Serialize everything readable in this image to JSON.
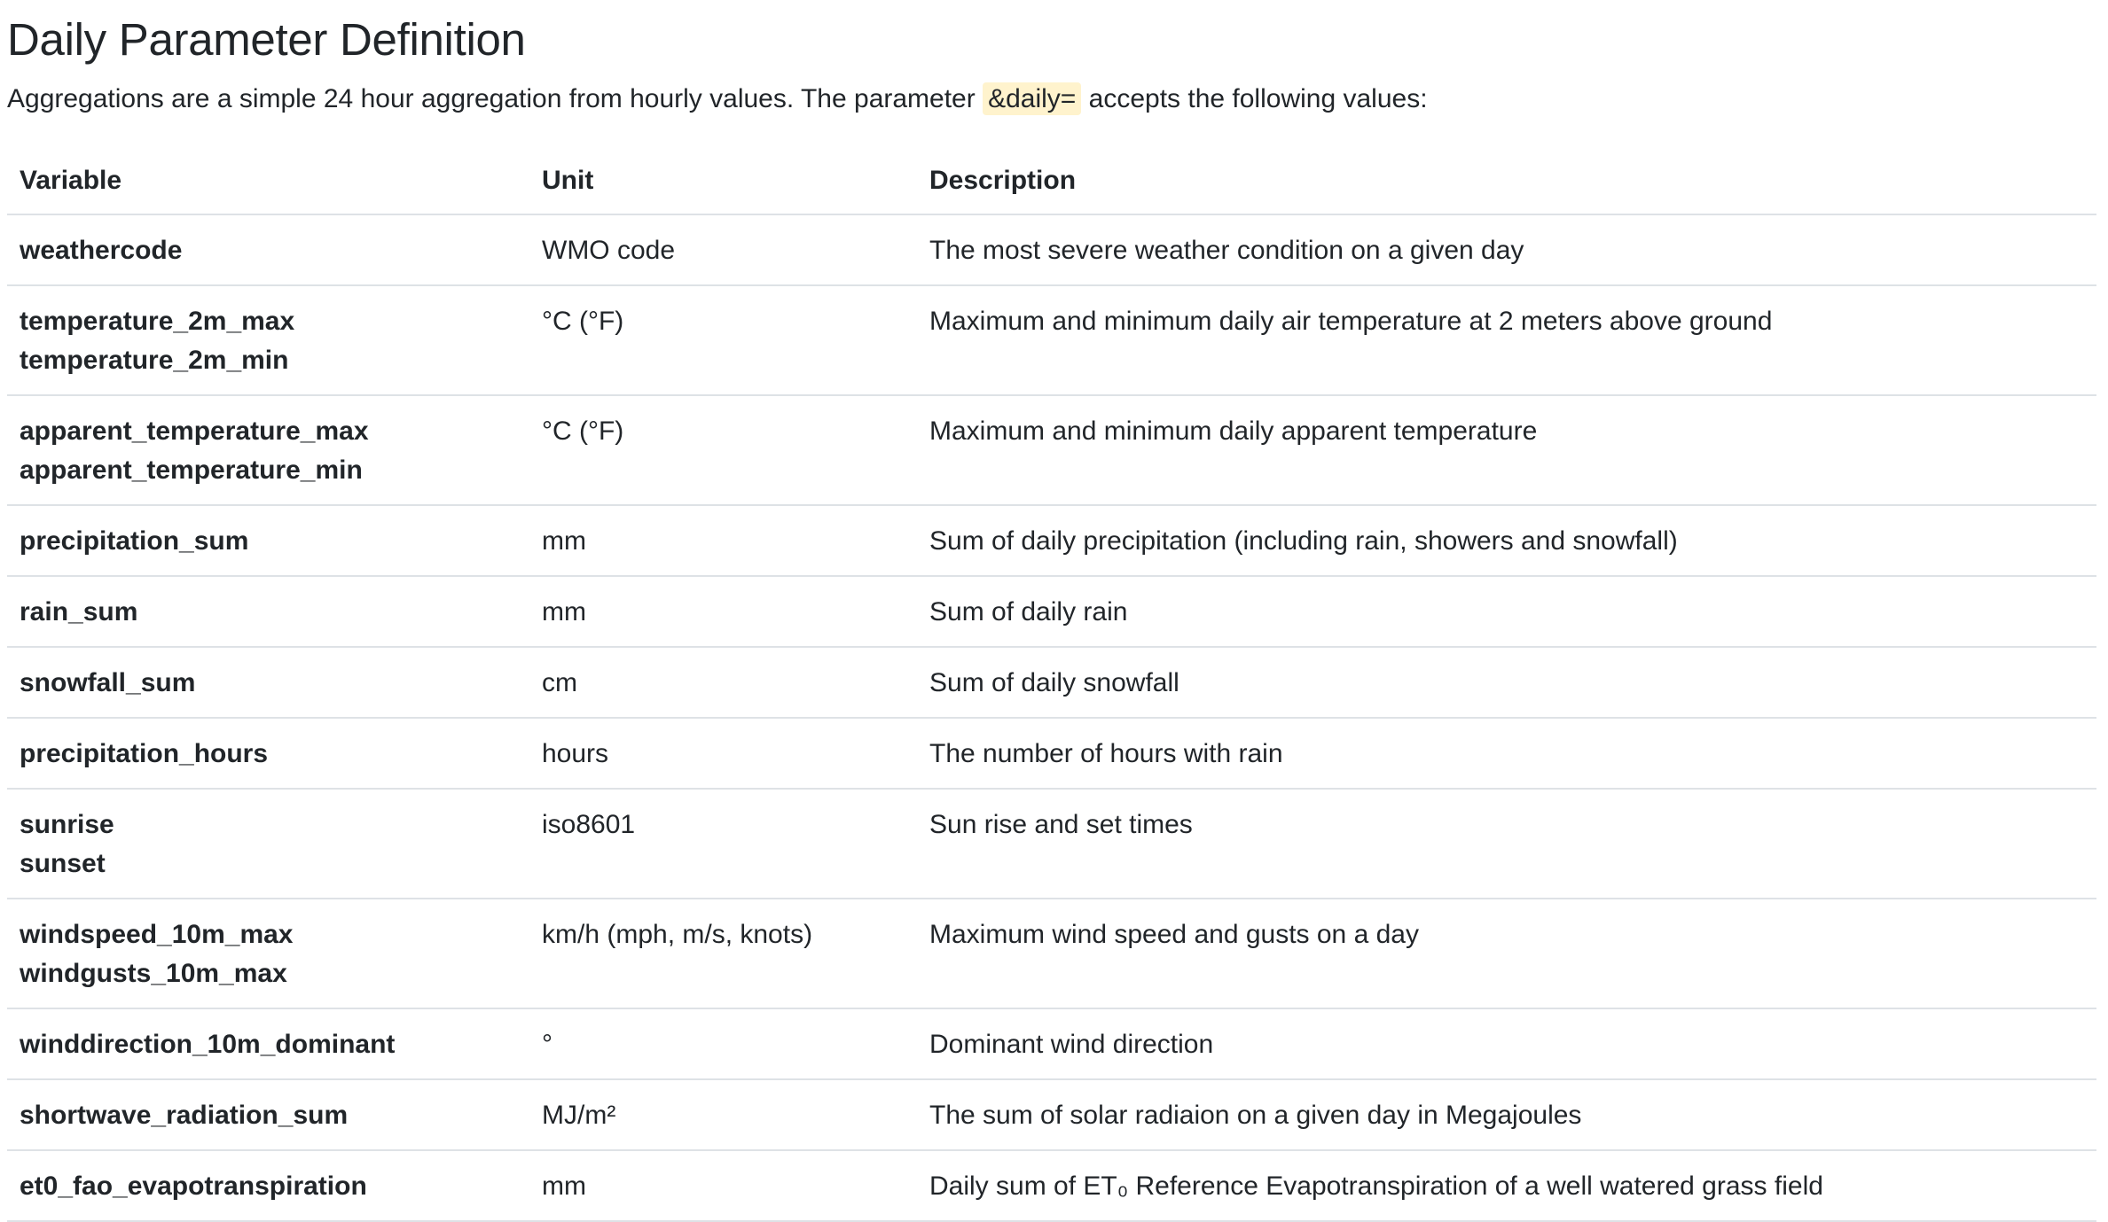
{
  "heading": "Daily Parameter Definition",
  "intro": {
    "before": "Aggregations are a simple 24 hour aggregation from hourly values. The parameter ",
    "code": "&daily=",
    "after": " accepts the following values:"
  },
  "table": {
    "headers": {
      "variable": "Variable",
      "unit": "Unit",
      "description": "Description"
    },
    "rows": [
      {
        "variables": [
          "weathercode"
        ],
        "unit": "WMO code",
        "description": "The most severe weather condition on a given day"
      },
      {
        "variables": [
          "temperature_2m_max",
          "temperature_2m_min"
        ],
        "unit": "°C (°F)",
        "description": "Maximum and minimum daily air temperature at 2 meters above ground"
      },
      {
        "variables": [
          "apparent_temperature_max",
          "apparent_temperature_min"
        ],
        "unit": "°C (°F)",
        "description": "Maximum and minimum daily apparent temperature"
      },
      {
        "variables": [
          "precipitation_sum"
        ],
        "unit": "mm",
        "description": "Sum of daily precipitation (including rain, showers and snowfall)"
      },
      {
        "variables": [
          "rain_sum"
        ],
        "unit": "mm",
        "description": "Sum of daily rain"
      },
      {
        "variables": [
          "snowfall_sum"
        ],
        "unit": "cm",
        "description": "Sum of daily snowfall"
      },
      {
        "variables": [
          "precipitation_hours"
        ],
        "unit": "hours",
        "description": "The number of hours with rain"
      },
      {
        "variables": [
          "sunrise",
          "sunset"
        ],
        "unit": "iso8601",
        "description": "Sun rise and set times"
      },
      {
        "variables": [
          "windspeed_10m_max",
          "windgusts_10m_max"
        ],
        "unit": "km/h (mph, m/s, knots)",
        "description": "Maximum wind speed and gusts on a day"
      },
      {
        "variables": [
          "winddirection_10m_dominant"
        ],
        "unit": "°",
        "description": "Dominant wind direction"
      },
      {
        "variables": [
          "shortwave_radiation_sum"
        ],
        "unit": "MJ/m²",
        "description": "The sum of solar radiaion on a given day in Megajoules"
      },
      {
        "variables": [
          "et0_fao_evapotranspiration"
        ],
        "unit": "mm",
        "description": "Daily sum of ET₀ Reference Evapotranspiration of a well watered grass field"
      }
    ]
  }
}
